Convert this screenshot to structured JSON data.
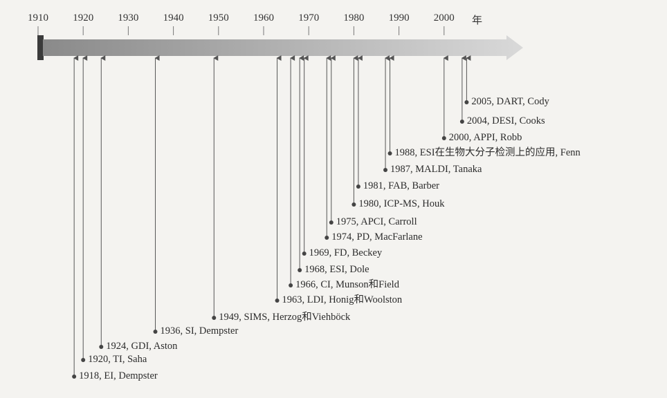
{
  "axis": {
    "ticks": [
      "1910",
      "1920",
      "1930",
      "1940",
      "1950",
      "1960",
      "1970",
      "1980",
      "1990",
      "2000"
    ],
    "unit": "年",
    "bar_colors": {
      "start": "#8a8a8a",
      "end": "#d9d9d9",
      "cap": "#3b3b3b"
    }
  },
  "events": [
    {
      "year": 1918,
      "label": "1918, EI, Dempster"
    },
    {
      "year": 1920,
      "label": "1920, TI, Saha"
    },
    {
      "year": 1924,
      "label": "1924, GDI, Aston"
    },
    {
      "year": 1936,
      "label": "1936, SI, Dempster"
    },
    {
      "year": 1949,
      "label": "1949, SIMS, Herzog和Viehböck"
    },
    {
      "year": 1963,
      "label": "1963, LDI, Honig和Woolston"
    },
    {
      "year": 1966,
      "label": "1966, CI, Munson和Field"
    },
    {
      "year": 1968,
      "label": "1968, ESI, Dole"
    },
    {
      "year": 1969,
      "label": "1969, FD, Beckey"
    },
    {
      "year": 1974,
      "label": "1974, PD, MacFarlane"
    },
    {
      "year": 1975,
      "label": "1975, APCI, Carroll"
    },
    {
      "year": 1980,
      "label": "1980, ICP-MS, Houk"
    },
    {
      "year": 1981,
      "label": "1981, FAB, Barber"
    },
    {
      "year": 1987,
      "label": "1987, MALDI, Tanaka"
    },
    {
      "year": 1988,
      "label": "1988, ESI在生物大分子检测上的应用, Fenn"
    },
    {
      "year": 2000,
      "label": "2000, APPI, Robb"
    },
    {
      "year": 2004,
      "label": "2004, DESI, Cooks"
    },
    {
      "year": 2005,
      "label": "2005, DART, Cody"
    }
  ]
}
